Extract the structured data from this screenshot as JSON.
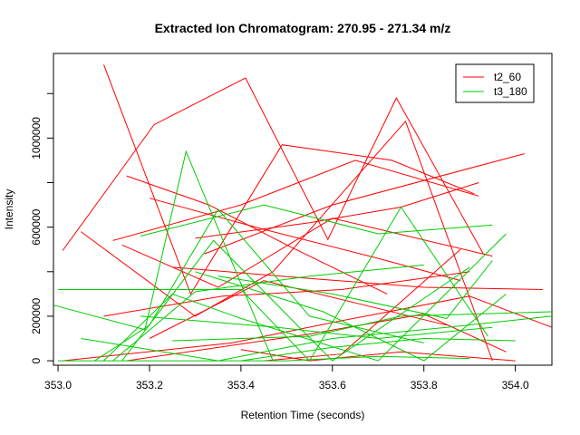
{
  "chart_data": {
    "type": "line",
    "title": "Extracted Ion Chromatogram: 270.95 - 271.34 m/z",
    "xlabel": "Retention Time (seconds)",
    "ylabel": "Intensity",
    "xlim": [
      352.99,
      354.08
    ],
    "ylim": [
      -20000,
      1380000
    ],
    "x_ticks": [
      353.0,
      353.2,
      353.4,
      353.6,
      353.8,
      354.0
    ],
    "x_tick_labels": [
      "353.0",
      "353.2",
      "353.4",
      "353.6",
      "353.8",
      "354.0"
    ],
    "y_ticks": [
      0,
      200000,
      400000,
      600000,
      800000,
      1000000,
      1200000
    ],
    "y_tick_labels": [
      "0",
      "200000",
      "",
      "600000",
      "",
      "1000000",
      ""
    ],
    "legend": {
      "position": "top-right",
      "entries": [
        "t2_60",
        "t3_180"
      ]
    },
    "grid": false,
    "series": [
      {
        "name": "t2_60",
        "color": "#FF0000",
        "segments": [
          [
            [
              353.01,
              495000
            ],
            [
              353.21,
              1060000
            ],
            [
              353.41,
              1270000
            ],
            [
              353.59,
              545000
            ],
            [
              353.74,
              1180000
            ],
            [
              353.93,
              480000
            ]
          ],
          [
            [
              353.1,
              1330000
            ],
            [
              353.29,
              300000
            ],
            [
              353.49,
              970000
            ],
            [
              353.73,
              900000
            ],
            [
              353.91,
              750000
            ]
          ],
          [
            [
              353.05,
              580000
            ],
            [
              353.3,
              200000
            ],
            [
              353.47,
              400000
            ],
            [
              353.62,
              750000
            ],
            [
              353.76,
              1075000
            ],
            [
              353.95,
              0
            ]
          ],
          [
            [
              353.15,
              830000
            ],
            [
              353.33,
              700000
            ],
            [
              353.51,
              510000
            ],
            [
              353.72,
              300000
            ]
          ],
          [
            [
              353.12,
              540000
            ],
            [
              353.4,
              700000
            ],
            [
              353.65,
              900000
            ],
            [
              353.92,
              740000
            ]
          ],
          [
            [
              353.14,
              520000
            ],
            [
              353.35,
              330000
            ],
            [
              353.6,
              640000
            ],
            [
              353.95,
              470000
            ]
          ],
          [
            [
              353.2,
              730000
            ],
            [
              353.45,
              590000
            ],
            [
              353.7,
              460000
            ],
            [
              353.88,
              360000
            ]
          ],
          [
            [
              353.25,
              420000
            ],
            [
              353.55,
              370000
            ],
            [
              353.8,
              330000
            ],
            [
              354.06,
              320000
            ]
          ],
          [
            [
              353.1,
              200000
            ],
            [
              353.36,
              290000
            ],
            [
              353.62,
              320000
            ],
            [
              353.9,
              400000
            ]
          ],
          [
            [
              353.01,
              0
            ],
            [
              353.38,
              80000
            ],
            [
              353.62,
              180000
            ],
            [
              353.9,
              290000
            ],
            [
              354.08,
              150000
            ]
          ],
          [
            [
              353.15,
              0
            ],
            [
              353.55,
              120000
            ],
            [
              353.8,
              210000
            ],
            [
              353.98,
              40000
            ]
          ],
          [
            [
              353.3,
              550000
            ],
            [
              353.55,
              620000
            ],
            [
              353.75,
              690000
            ],
            [
              353.92,
              800000
            ]
          ],
          [
            [
              353.32,
              480000
            ],
            [
              353.6,
              700000
            ],
            [
              354.02,
              930000
            ]
          ],
          [
            [
              353.45,
              0
            ],
            [
              353.62,
              30000
            ],
            [
              353.88,
              500000
            ]
          ],
          [
            [
              353.2,
              100000
            ],
            [
              353.45,
              360000
            ],
            [
              353.65,
              260000
            ],
            [
              353.85,
              160000
            ]
          ],
          [
            [
              353.4,
              50000
            ],
            [
              353.55,
              0
            ],
            [
              353.75,
              40000
            ],
            [
              354.0,
              0
            ]
          ]
        ]
      },
      {
        "name": "t3_180",
        "color": "#00CC00",
        "segments": [
          [
            [
              352.99,
              250000
            ],
            [
              353.19,
              140000
            ],
            [
              353.28,
              940000
            ],
            [
              353.47,
              0
            ]
          ],
          [
            [
              353.0,
              320000
            ],
            [
              353.4,
              320000
            ],
            [
              353.55,
              0
            ],
            [
              353.75,
              690000
            ],
            [
              353.94,
              110000
            ]
          ],
          [
            [
              353.08,
              0
            ],
            [
              353.2,
              160000
            ],
            [
              353.35,
              680000
            ],
            [
              353.55,
              200000
            ],
            [
              353.8,
              80000
            ]
          ],
          [
            [
              353.1,
              0
            ],
            [
              353.25,
              300000
            ],
            [
              353.4,
              190000
            ],
            [
              353.7,
              0
            ],
            [
              353.98,
              570000
            ]
          ],
          [
            [
              353.14,
              0
            ],
            [
              353.34,
              540000
            ],
            [
              353.6,
              0
            ],
            [
              353.9,
              420000
            ]
          ],
          [
            [
              353.18,
              560000
            ],
            [
              353.45,
              700000
            ],
            [
              353.7,
              570000
            ],
            [
              353.95,
              610000
            ]
          ],
          [
            [
              353.12,
              0
            ],
            [
              353.3,
              310000
            ],
            [
              353.55,
              380000
            ],
            [
              353.8,
              430000
            ]
          ],
          [
            [
              353.05,
              100000
            ],
            [
              353.35,
              0
            ],
            [
              353.6,
              100000
            ],
            [
              353.85,
              150000
            ],
            [
              354.08,
              200000
            ]
          ],
          [
            [
              353.3,
              400000
            ],
            [
              353.58,
              220000
            ],
            [
              353.8,
              0
            ],
            [
              353.98,
              300000
            ]
          ],
          [
            [
              353.18,
              200000
            ],
            [
              353.48,
              150000
            ],
            [
              353.7,
              100000
            ],
            [
              353.95,
              150000
            ]
          ],
          [
            [
              353.25,
              90000
            ],
            [
              353.55,
              110000
            ],
            [
              353.75,
              200000
            ],
            [
              354.08,
              220000
            ]
          ],
          [
            [
              353.35,
              380000
            ],
            [
              353.6,
              300000
            ],
            [
              353.85,
              190000
            ],
            [
              353.95,
              450000
            ]
          ],
          [
            [
              353.4,
              0
            ],
            [
              353.6,
              60000
            ],
            [
              353.8,
              100000
            ],
            [
              354.0,
              90000
            ]
          ],
          [
            [
              353.0,
              0
            ],
            [
              353.5,
              0
            ],
            [
              353.7,
              20000
            ],
            [
              353.9,
              10000
            ]
          ]
        ]
      }
    ]
  }
}
